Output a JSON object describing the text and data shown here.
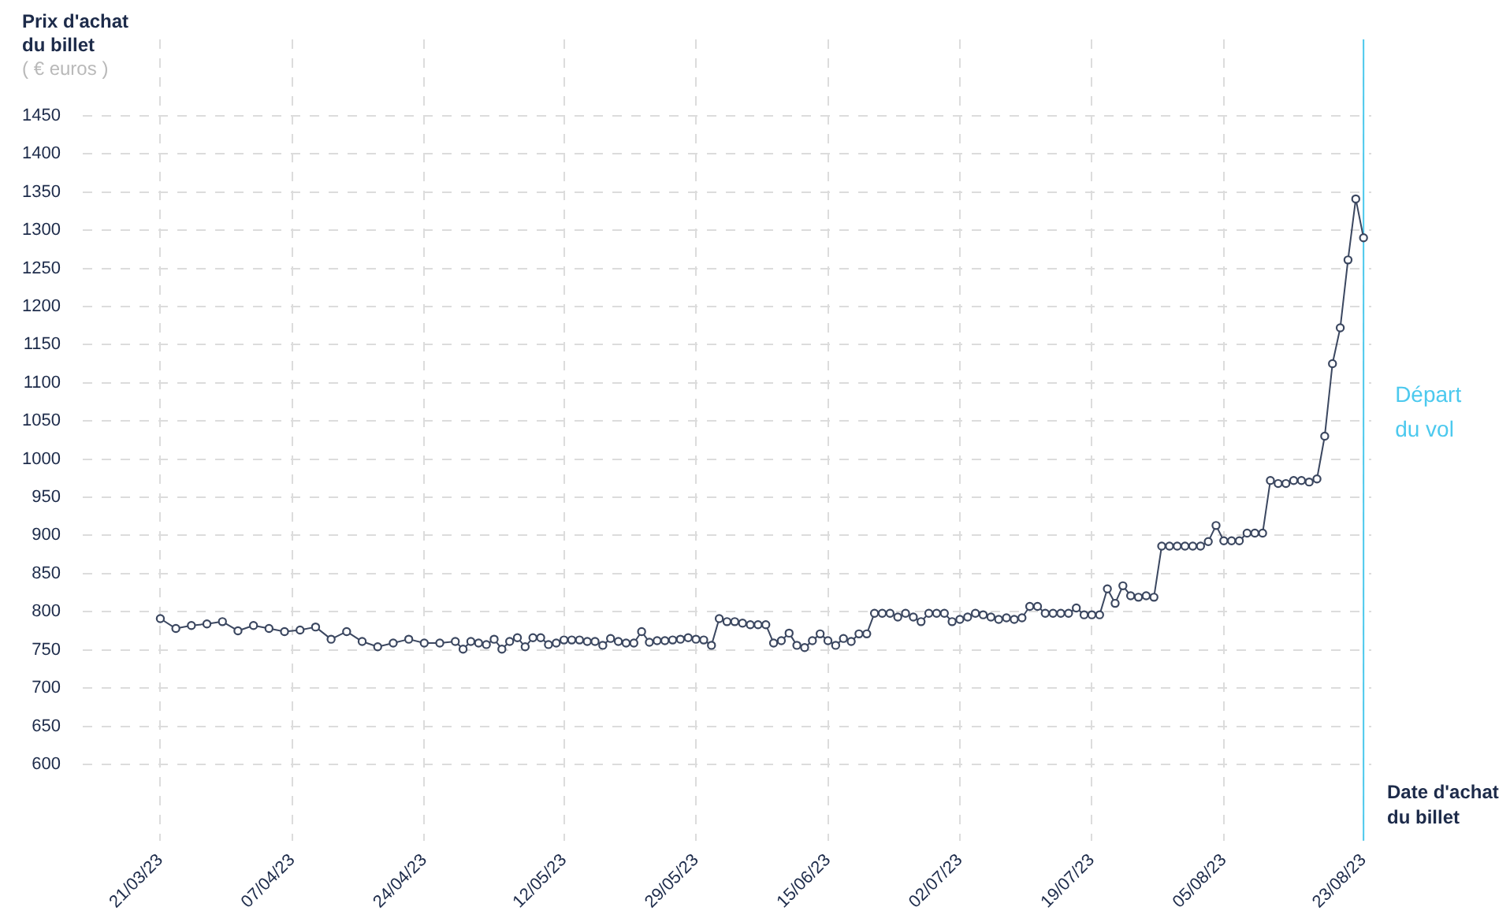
{
  "chart_data": {
    "type": "line",
    "ylabel": "Prix d'achat du billet",
    "xlabel": "Date d'achat du billet",
    "annotations": [
      "( € euros )"
    ],
    "color": "#3b4760",
    "marker": "circle",
    "line_style": "solid",
    "grid": true,
    "xlim": [
      "2023-03-11",
      "2023-08-24"
    ],
    "ylim": [
      500,
      1550
    ],
    "yticks": [
      600,
      650,
      700,
      750,
      800,
      850,
      900,
      950,
      1000,
      1050,
      1100,
      1150,
      1200,
      1250,
      1300,
      1350,
      1400,
      1450
    ],
    "xticks": [
      {
        "value": "2023-03-21",
        "label": "21/03/23"
      },
      {
        "value": "2023-04-07",
        "label": "07/04/23"
      },
      {
        "value": "2023-04-24",
        "label": "24/04/23"
      },
      {
        "value": "2023-05-12",
        "label": "12/05/23"
      },
      {
        "value": "2023-05-29",
        "label": "29/05/23"
      },
      {
        "value": "2023-06-15",
        "label": "15/06/23"
      },
      {
        "value": "2023-07-02",
        "label": "02/07/23"
      },
      {
        "value": "2023-07-19",
        "label": "19/07/23"
      },
      {
        "value": "2023-08-05",
        "label": "05/08/23"
      },
      {
        "value": "2023-08-23",
        "label": "23/08/23"
      }
    ],
    "ref_lines": [
      {
        "axis": "x",
        "value": "2023-08-23",
        "label": "Départ du vol",
        "color": "#4cc9ee"
      }
    ],
    "x": [
      "2023-03-21",
      "2023-03-23",
      "2023-03-25",
      "2023-03-27",
      "2023-03-29",
      "2023-03-31",
      "2023-04-02",
      "2023-04-04",
      "2023-04-06",
      "2023-04-08",
      "2023-04-10",
      "2023-04-12",
      "2023-04-14",
      "2023-04-16",
      "2023-04-18",
      "2023-04-20",
      "2023-04-22",
      "2023-04-24",
      "2023-04-26",
      "2023-04-28",
      "2023-04-29",
      "2023-04-30",
      "2023-05-01",
      "2023-05-02",
      "2023-05-03",
      "2023-05-04",
      "2023-05-05",
      "2023-05-06",
      "2023-05-07",
      "2023-05-08",
      "2023-05-09",
      "2023-05-10",
      "2023-05-11",
      "2023-05-12",
      "2023-05-13",
      "2023-05-14",
      "2023-05-15",
      "2023-05-16",
      "2023-05-17",
      "2023-05-18",
      "2023-05-19",
      "2023-05-20",
      "2023-05-21",
      "2023-05-22",
      "2023-05-23",
      "2023-05-24",
      "2023-05-25",
      "2023-05-26",
      "2023-05-27",
      "2023-05-28",
      "2023-05-29",
      "2023-05-30",
      "2023-05-31",
      "2023-06-01",
      "2023-06-02",
      "2023-06-03",
      "2023-06-04",
      "2023-06-05",
      "2023-06-06",
      "2023-06-07",
      "2023-06-08",
      "2023-06-09",
      "2023-06-10",
      "2023-06-11",
      "2023-06-12",
      "2023-06-13",
      "2023-06-14",
      "2023-06-15",
      "2023-06-16",
      "2023-06-17",
      "2023-06-18",
      "2023-06-19",
      "2023-06-20",
      "2023-06-21",
      "2023-06-22",
      "2023-06-23",
      "2023-06-24",
      "2023-06-25",
      "2023-06-26",
      "2023-06-27",
      "2023-06-28",
      "2023-06-29",
      "2023-06-30",
      "2023-07-01",
      "2023-07-02",
      "2023-07-03",
      "2023-07-04",
      "2023-07-05",
      "2023-07-06",
      "2023-07-07",
      "2023-07-08",
      "2023-07-09",
      "2023-07-10",
      "2023-07-11",
      "2023-07-12",
      "2023-07-13",
      "2023-07-14",
      "2023-07-15",
      "2023-07-16",
      "2023-07-17",
      "2023-07-18",
      "2023-07-19",
      "2023-07-20",
      "2023-07-21",
      "2023-07-22",
      "2023-07-23",
      "2023-07-24",
      "2023-07-25",
      "2023-07-26",
      "2023-07-27",
      "2023-07-28",
      "2023-07-29",
      "2023-07-30",
      "2023-07-31",
      "2023-08-01",
      "2023-08-02",
      "2023-08-03",
      "2023-08-04",
      "2023-08-05",
      "2023-08-06",
      "2023-08-07",
      "2023-08-08",
      "2023-08-09",
      "2023-08-10",
      "2023-08-11",
      "2023-08-12",
      "2023-08-13",
      "2023-08-14",
      "2023-08-15",
      "2023-08-16",
      "2023-08-17",
      "2023-08-18",
      "2023-08-19",
      "2023-08-20",
      "2023-08-21",
      "2023-08-22",
      "2023-08-23"
    ],
    "values": [
      791,
      778,
      782,
      784,
      787,
      775,
      782,
      778,
      774,
      776,
      780,
      764,
      774,
      761,
      754,
      759,
      764,
      759,
      759,
      761,
      751,
      761,
      759,
      757,
      764,
      751,
      761,
      766,
      754,
      766,
      766,
      757,
      759,
      763,
      763,
      763,
      761,
      761,
      756,
      765,
      761,
      759,
      759,
      774,
      760,
      762,
      762,
      763,
      764,
      766,
      764,
      763,
      756,
      791,
      787,
      787,
      785,
      783,
      783,
      783,
      759,
      762,
      772,
      756,
      753,
      762,
      771,
      762,
      756,
      765,
      761,
      771,
      771,
      798,
      798,
      798,
      793,
      798,
      793,
      787,
      798,
      798,
      798,
      787,
      790,
      793,
      798,
      796,
      793,
      790,
      792,
      790,
      792,
      807,
      807,
      798,
      798,
      798,
      798,
      805,
      796,
      796,
      796,
      830,
      811,
      834,
      821,
      819,
      821,
      819,
      886,
      886,
      886,
      886,
      886,
      886,
      892,
      913,
      893,
      893,
      893,
      903,
      903,
      903,
      972,
      968,
      968,
      972,
      972,
      970,
      974,
      1030,
      1125,
      1172,
      1261,
      1341,
      1290
    ]
  }
}
